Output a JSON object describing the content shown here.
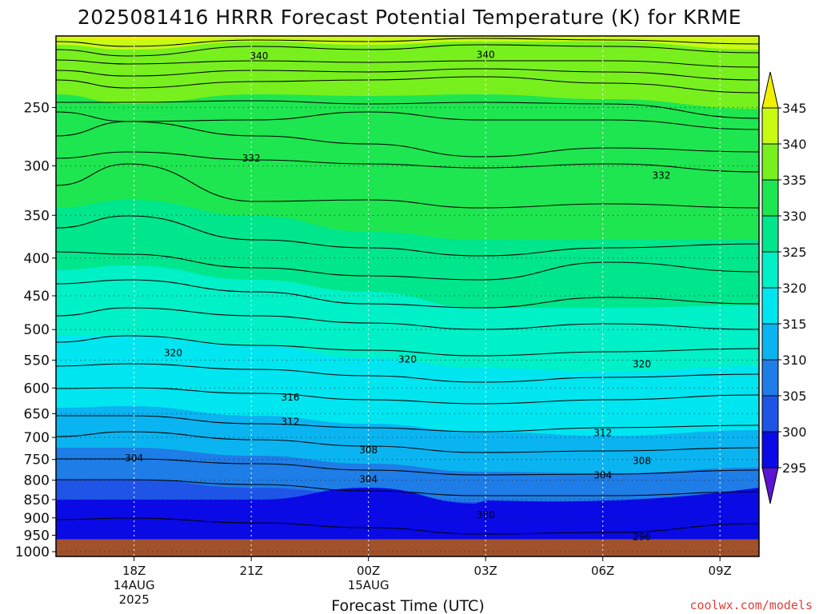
{
  "chart_data": {
    "type": "contour",
    "title": "2025081416 HRRR Forecast Potential Temperature (K) for KRME",
    "xlabel": "Forecast Time (UTC)",
    "ylabel": "",
    "credit": "coolwx.com/models",
    "x_ticks": [
      {
        "label": "18Z",
        "sub1": "14AUG",
        "sub2": "2025",
        "hour": 2
      },
      {
        "label": "21Z",
        "sub1": "",
        "sub2": "",
        "hour": 5
      },
      {
        "label": "00Z",
        "sub1": "15AUG",
        "sub2": "",
        "hour": 8
      },
      {
        "label": "03Z",
        "sub1": "",
        "sub2": "",
        "hour": 11
      },
      {
        "label": "06Z",
        "sub1": "",
        "sub2": "",
        "hour": 14
      },
      {
        "label": "09Z",
        "sub1": "",
        "sub2": "",
        "hour": 17
      }
    ],
    "xlim": [
      0,
      18
    ],
    "y_ticks": [
      250,
      300,
      350,
      400,
      450,
      500,
      550,
      600,
      650,
      700,
      750,
      800,
      850,
      900,
      950,
      1000
    ],
    "ylim_hpa": [
      1015,
      200
    ],
    "ground_top_hpa": 962,
    "colorbar": {
      "levels": [
        295,
        300,
        305,
        310,
        315,
        320,
        325,
        330,
        335,
        340,
        345
      ],
      "colors": [
        "#5a14d2",
        "#0a0ae6",
        "#1e55e6",
        "#1e7de6",
        "#0ab4f0",
        "#00e6f0",
        "#00f0c8",
        "#00e68c",
        "#1ee650",
        "#78f01e",
        "#c8fa14",
        "#f0f000"
      ],
      "colors_note": "colors[0] is below-295 triangle, last is above-345 triangle"
    },
    "contour_labels": [
      {
        "text": "340",
        "hour": 5.2,
        "hpa": 213
      },
      {
        "text": "340",
        "hour": 11.0,
        "hpa": 212
      },
      {
        "text": "332",
        "hour": 5.0,
        "hpa": 293
      },
      {
        "text": "332",
        "hour": 15.5,
        "hpa": 309
      },
      {
        "text": "320",
        "hour": 3.0,
        "hpa": 538
      },
      {
        "text": "320",
        "hour": 9.0,
        "hpa": 549
      },
      {
        "text": "320",
        "hour": 15.0,
        "hpa": 557
      },
      {
        "text": "316",
        "hour": 6.0,
        "hpa": 618
      },
      {
        "text": "312",
        "hour": 6.0,
        "hpa": 667
      },
      {
        "text": "312",
        "hour": 14.0,
        "hpa": 690
      },
      {
        "text": "308",
        "hour": 8.0,
        "hpa": 728
      },
      {
        "text": "308",
        "hour": 15.0,
        "hpa": 753
      },
      {
        "text": "304",
        "hour": 2.0,
        "hpa": 747
      },
      {
        "text": "304",
        "hour": 8.0,
        "hpa": 798
      },
      {
        "text": "304",
        "hour": 14.0,
        "hpa": 788
      },
      {
        "text": "300",
        "hour": 11.0,
        "hpa": 891
      },
      {
        "text": "296",
        "hour": 15.0,
        "hpa": 955
      }
    ]
  }
}
